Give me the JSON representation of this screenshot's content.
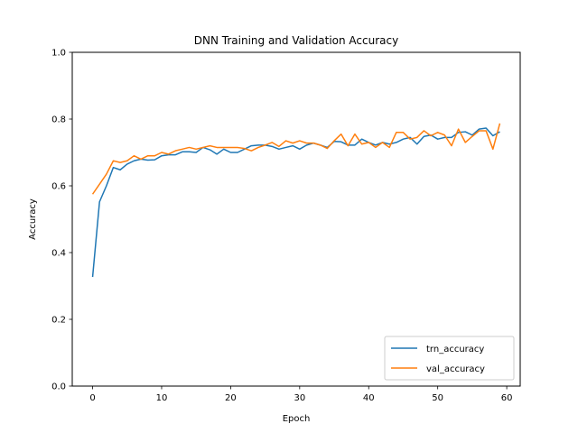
{
  "chart_data": {
    "type": "line",
    "title": "DNN Training and Validation Accuracy",
    "xlabel": "Epoch",
    "ylabel": "Accuracy",
    "xlim": [
      -2.95,
      61.95
    ],
    "ylim": [
      0.0,
      1.0
    ],
    "xticks": [
      0,
      10,
      20,
      30,
      40,
      50,
      60
    ],
    "yticks": [
      0.0,
      0.2,
      0.4,
      0.6,
      0.8,
      1.0
    ],
    "xtick_labels": [
      "0",
      "10",
      "20",
      "30",
      "40",
      "50",
      "60"
    ],
    "ytick_labels": [
      "0.0",
      "0.2",
      "0.4",
      "0.6",
      "0.8",
      "1.0"
    ],
    "grid": false,
    "legend_placement": "lower-right",
    "x": [
      0,
      1,
      2,
      3,
      4,
      5,
      6,
      7,
      8,
      9,
      10,
      11,
      12,
      13,
      14,
      15,
      16,
      17,
      18,
      19,
      20,
      21,
      22,
      23,
      24,
      25,
      26,
      27,
      28,
      29,
      30,
      31,
      32,
      33,
      34,
      35,
      36,
      37,
      38,
      39,
      40,
      41,
      42,
      43,
      44,
      45,
      46,
      47,
      48,
      49,
      50,
      51,
      52,
      53,
      54,
      55,
      56,
      57,
      58,
      59
    ],
    "series": [
      {
        "name": "trn_accuracy",
        "color": "#1f77b4",
        "values": [
          0.327,
          0.552,
          0.6,
          0.655,
          0.648,
          0.665,
          0.675,
          0.68,
          0.677,
          0.678,
          0.69,
          0.693,
          0.693,
          0.702,
          0.702,
          0.7,
          0.715,
          0.708,
          0.695,
          0.71,
          0.7,
          0.7,
          0.71,
          0.72,
          0.722,
          0.722,
          0.718,
          0.71,
          0.715,
          0.72,
          0.71,
          0.722,
          0.728,
          0.722,
          0.715,
          0.733,
          0.732,
          0.722,
          0.722,
          0.74,
          0.73,
          0.722,
          0.73,
          0.725,
          0.73,
          0.74,
          0.745,
          0.725,
          0.748,
          0.752,
          0.74,
          0.745,
          0.745,
          0.76,
          0.762,
          0.752,
          0.77,
          0.773,
          0.75,
          0.762
        ]
      },
      {
        "name": "val_accuracy",
        "color": "#ff7f0e",
        "values": [
          0.575,
          0.605,
          0.635,
          0.675,
          0.67,
          0.675,
          0.69,
          0.68,
          0.69,
          0.69,
          0.7,
          0.695,
          0.705,
          0.71,
          0.715,
          0.71,
          0.715,
          0.72,
          0.715,
          0.715,
          0.715,
          0.715,
          0.712,
          0.705,
          0.715,
          0.722,
          0.73,
          0.718,
          0.735,
          0.728,
          0.735,
          0.728,
          0.728,
          0.722,
          0.712,
          0.735,
          0.755,
          0.72,
          0.755,
          0.725,
          0.73,
          0.715,
          0.73,
          0.715,
          0.76,
          0.76,
          0.74,
          0.745,
          0.765,
          0.75,
          0.76,
          0.752,
          0.72,
          0.77,
          0.73,
          0.748,
          0.765,
          0.765,
          0.71,
          0.787
        ]
      }
    ]
  }
}
